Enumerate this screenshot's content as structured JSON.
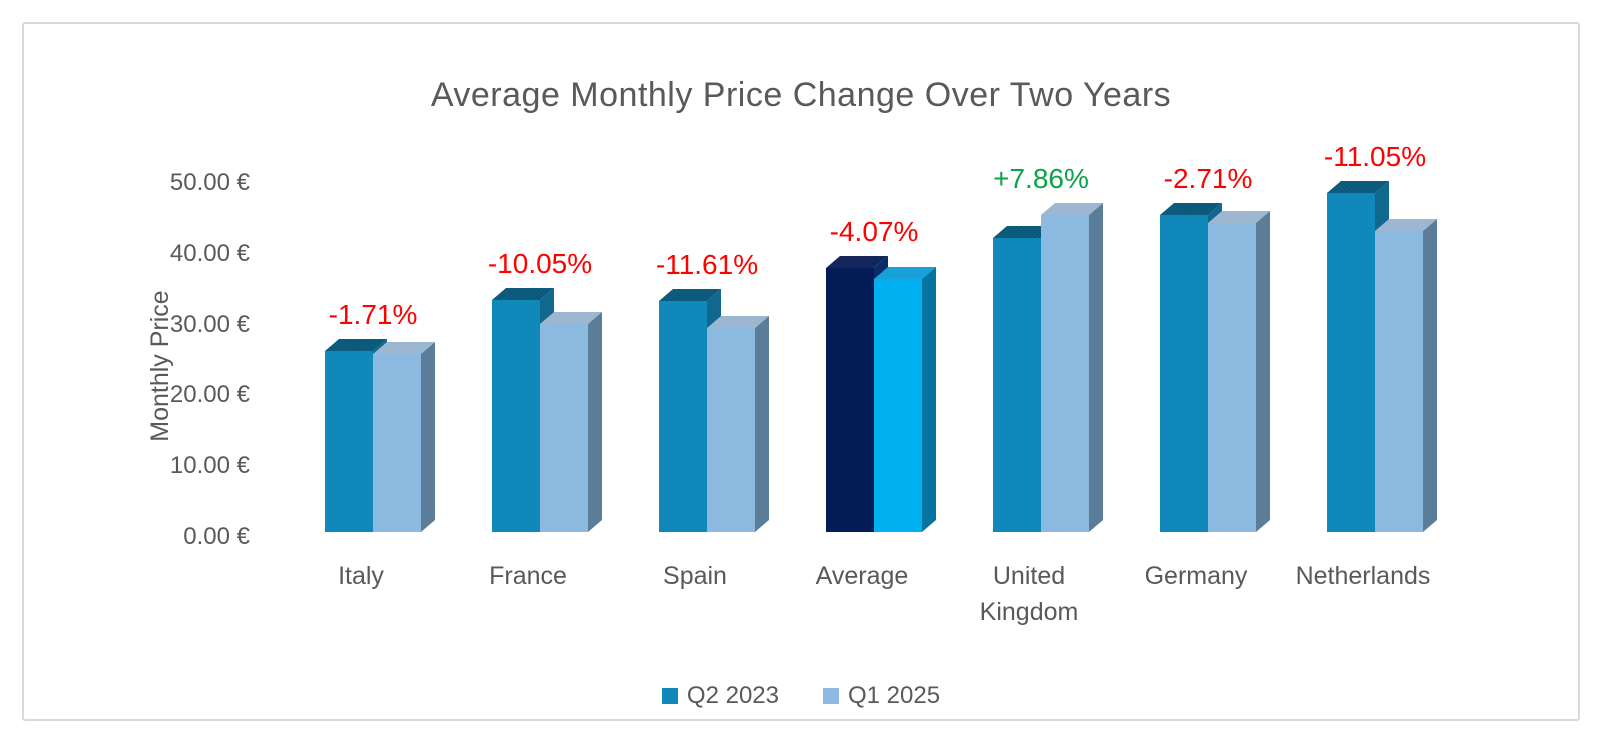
{
  "chart_data": {
    "type": "bar",
    "style": "3d-clustered-column",
    "title": "Average Monthly Price Change Over Two Years",
    "ylabel": "Monthly Price",
    "categories": [
      "Italy",
      "France",
      "Spain",
      "Average",
      "United Kingdom",
      "Germany",
      "Netherlands"
    ],
    "series": [
      {
        "name": "Q2 2023",
        "values": [
          25.31,
          32.4,
          32.3,
          36.9,
          41.1,
          44.4,
          47.4
        ]
      },
      {
        "name": "Q1 2025",
        "values": [
          24.88,
          29.14,
          28.55,
          35.4,
          44.33,
          43.2,
          42.16
        ]
      }
    ],
    "change_labels": [
      "-1.71%",
      "-10.05%",
      "-11.61%",
      "-4.07%",
      "+7.86%",
      "-2.71%",
      "-11.05%"
    ],
    "change_label_signs": [
      "negative",
      "negative",
      "negative",
      "negative",
      "positive",
      "negative",
      "negative"
    ],
    "highlight_category": "Average",
    "ylim": [
      0,
      50
    ],
    "ytick_step": 10,
    "ytick_labels": [
      "0.00 €",
      "10.00 €",
      "20.00 €",
      "30.00 €",
      "40.00 €",
      "50.00 €"
    ],
    "grid": false,
    "legend": {
      "position": "bottom",
      "entries": [
        "Q2 2023",
        "Q1 2025"
      ]
    },
    "colors": {
      "q2_front": "#1188BA",
      "q2_top": "#0C5F82",
      "q2_side": "#11688F",
      "q1_front": "#8BB9DF",
      "q1_top": "#9DB7D1",
      "q1_side": "#5C7D99",
      "avg_q2_front": "#041D58",
      "avg_q2_top": "#15275F",
      "avg_q2_side": "#0A2B6B",
      "avg_q1_front": "#00B0F0",
      "avg_q1_top": "#18A0D8",
      "avg_q1_side": "#0674A1",
      "text": "#595959",
      "negative": "#FF0000",
      "positive": "#0CA24A",
      "frame_border": "#D9D9D9"
    }
  }
}
